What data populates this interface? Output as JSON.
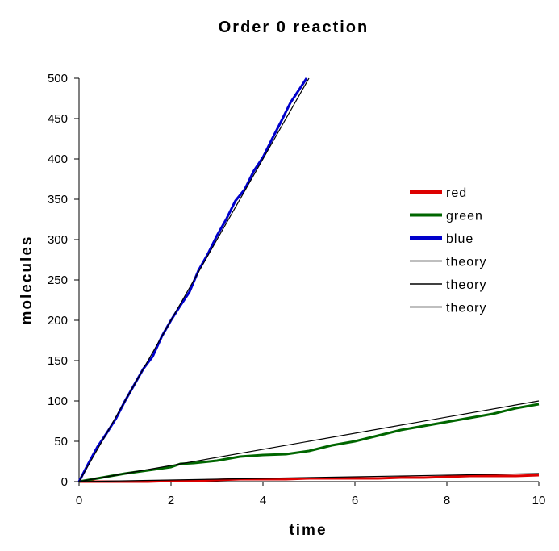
{
  "chart_data": {
    "type": "line",
    "title": "Order 0 reaction",
    "xlabel": "time",
    "ylabel": "molecules",
    "xlim": [
      0,
      10
    ],
    "ylim": [
      0,
      500
    ],
    "xticks": [
      0,
      2,
      4,
      6,
      8,
      10
    ],
    "yticks": [
      0,
      50,
      100,
      150,
      200,
      250,
      300,
      350,
      400,
      450,
      500
    ],
    "grid": false,
    "legend_position": "right",
    "series": [
      {
        "name": "red",
        "color": "#dd0000",
        "x": [
          0,
          0.5,
          1,
          1.5,
          2,
          2.5,
          3,
          3.5,
          4,
          4.5,
          5,
          5.5,
          6,
          6.5,
          7,
          7.5,
          8,
          8.5,
          9,
          9.5,
          10
        ],
        "y": [
          0,
          0,
          0,
          0,
          1,
          1,
          2,
          3,
          3,
          3,
          4,
          4,
          4,
          4,
          5,
          5,
          6,
          7,
          7,
          7,
          8
        ]
      },
      {
        "name": "green",
        "color": "#006600",
        "x": [
          0,
          0.5,
          1,
          1.5,
          2,
          2.2,
          2.5,
          3,
          3.5,
          4,
          4.5,
          5,
          5.5,
          6,
          6.5,
          7,
          7.5,
          8,
          8.5,
          9,
          9.5,
          10
        ],
        "y": [
          0,
          5,
          10,
          14,
          18,
          22,
          23,
          26,
          31,
          33,
          34,
          38,
          45,
          50,
          57,
          64,
          69,
          74,
          79,
          84,
          91,
          96
        ]
      },
      {
        "name": "blue",
        "color": "#0000cc",
        "x": [
          0,
          0.2,
          0.4,
          0.6,
          0.8,
          1,
          1.2,
          1.4,
          1.6,
          1.8,
          2,
          2.2,
          2.4,
          2.6,
          2.8,
          3,
          3.2,
          3.4,
          3.6,
          3.8,
          4,
          4.2,
          4.4,
          4.6,
          4.8,
          4.95
        ],
        "y": [
          0,
          22,
          43,
          60,
          78,
          100,
          120,
          140,
          155,
          180,
          200,
          218,
          235,
          262,
          282,
          305,
          325,
          348,
          362,
          385,
          402,
          425,
          447,
          470,
          487,
          500
        ]
      },
      {
        "name": "theory",
        "color": "#000000",
        "x": [
          0,
          10
        ],
        "y": [
          0,
          10
        ]
      },
      {
        "name": "theory",
        "color": "#000000",
        "x": [
          0,
          10
        ],
        "y": [
          0,
          100
        ]
      },
      {
        "name": "theory",
        "color": "#000000",
        "x": [
          0,
          5
        ],
        "y": [
          0,
          500
        ]
      }
    ]
  }
}
